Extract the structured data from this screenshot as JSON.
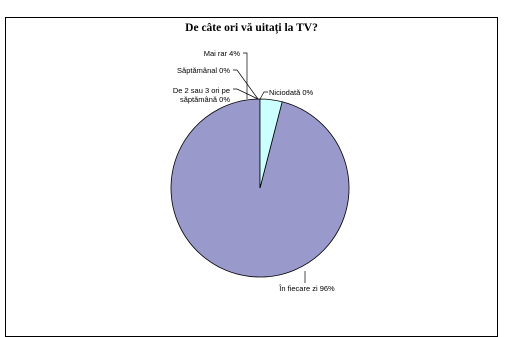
{
  "chart_data": {
    "type": "pie",
    "title": "De câte ori vă uitați la TV?",
    "slices": [
      {
        "label": "În fiecare zi",
        "value": 96,
        "display": "În fiecare zi 96%",
        "color": "#9999cc"
      },
      {
        "label": "De 2 sau 3 ori pe săptămână",
        "value": 0,
        "display_lines": [
          "De 2 sau 3 ori pe",
          "săptămână 0%"
        ],
        "color": "#ffffcc"
      },
      {
        "label": "Săptămânal",
        "value": 0,
        "display": "Săptămânal 0%",
        "color": "#99ccff"
      },
      {
        "label": "Mai rar",
        "value": 4,
        "display": "Mai rar 4%",
        "color": "#ccffff"
      },
      {
        "label": "Niciodată",
        "value": 0,
        "display": "Niciodată 0%",
        "color": "#cc99ff"
      }
    ],
    "start": "top",
    "direction": "counterclockwise",
    "legend": "none"
  },
  "colors": {
    "outline": "#000000",
    "background": "#ffffff"
  }
}
